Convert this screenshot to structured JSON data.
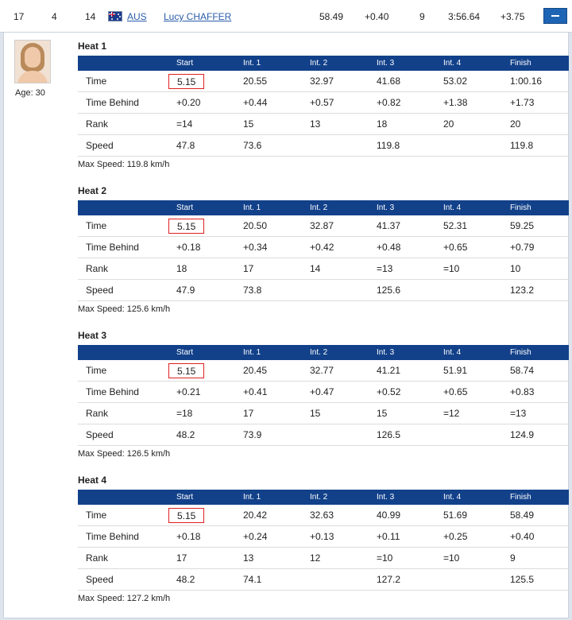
{
  "athlete_row": {
    "rank": "17",
    "bib": "4",
    "start_no": "14",
    "flag_icon": "australia-flag-icon",
    "nation": "AUS",
    "name": "Lucy CHAFFER",
    "best_run": "58.49",
    "behind": "+0.40",
    "runs_rank": "9",
    "total": "3:56.64",
    "total_behind": "+3.75"
  },
  "profile": {
    "age": "Age: 30"
  },
  "columns": [
    "",
    "Start",
    "Int. 1",
    "Int. 2",
    "Int. 3",
    "Int. 4",
    "Finish"
  ],
  "heats": [
    {
      "title": "Heat 1",
      "rows": [
        [
          "Time",
          "5.15",
          "20.55",
          "32.97",
          "41.68",
          "53.02",
          "1:00.16"
        ],
        [
          "Time Behind",
          "+0.20",
          "+0.44",
          "+0.57",
          "+0.82",
          "+1.38",
          "+1.73"
        ],
        [
          "Rank",
          "=14",
          "15",
          "13",
          "18",
          "20",
          "20"
        ],
        [
          "Speed",
          "47.8",
          "73.6",
          "",
          "119.8",
          "",
          "119.8"
        ]
      ],
      "max_speed": "Max Speed: 119.8 km/h"
    },
    {
      "title": "Heat 2",
      "rows": [
        [
          "Time",
          "5.15",
          "20.50",
          "32.87",
          "41.37",
          "52.31",
          "59.25"
        ],
        [
          "Time Behind",
          "+0.18",
          "+0.34",
          "+0.42",
          "+0.48",
          "+0.65",
          "+0.79"
        ],
        [
          "Rank",
          "18",
          "17",
          "14",
          "=13",
          "=10",
          "10"
        ],
        [
          "Speed",
          "47.9",
          "73.8",
          "",
          "125.6",
          "",
          "123.2"
        ]
      ],
      "max_speed": "Max Speed: 125.6 km/h"
    },
    {
      "title": "Heat 3",
      "rows": [
        [
          "Time",
          "5.15",
          "20.45",
          "32.77",
          "41.21",
          "51.91",
          "58.74"
        ],
        [
          "Time Behind",
          "+0.21",
          "+0.41",
          "+0.47",
          "+0.52",
          "+0.65",
          "+0.83"
        ],
        [
          "Rank",
          "=18",
          "17",
          "15",
          "15",
          "=12",
          "=13"
        ],
        [
          "Speed",
          "48.2",
          "73.9",
          "",
          "126.5",
          "",
          "124.9"
        ]
      ],
      "max_speed": "Max Speed: 126.5 km/h"
    },
    {
      "title": "Heat 4",
      "rows": [
        [
          "Time",
          "5.15",
          "20.42",
          "32.63",
          "40.99",
          "51.69",
          "58.49"
        ],
        [
          "Time Behind",
          "+0.18",
          "+0.24",
          "+0.13",
          "+0.11",
          "+0.25",
          "+0.40"
        ],
        [
          "Rank",
          "17",
          "13",
          "12",
          "=10",
          "=10",
          "9"
        ],
        [
          "Speed",
          "48.2",
          "74.1",
          "",
          "127.2",
          "",
          "125.5"
        ]
      ],
      "max_speed": "Max Speed: 127.2 km/h"
    }
  ],
  "colors": {
    "header_bg": "#12418a",
    "highlight_border": "#e02020",
    "link": "#2a5caa",
    "collapse_button": "#1e64b4"
  },
  "icons": {
    "collapse": "minus-icon"
  }
}
